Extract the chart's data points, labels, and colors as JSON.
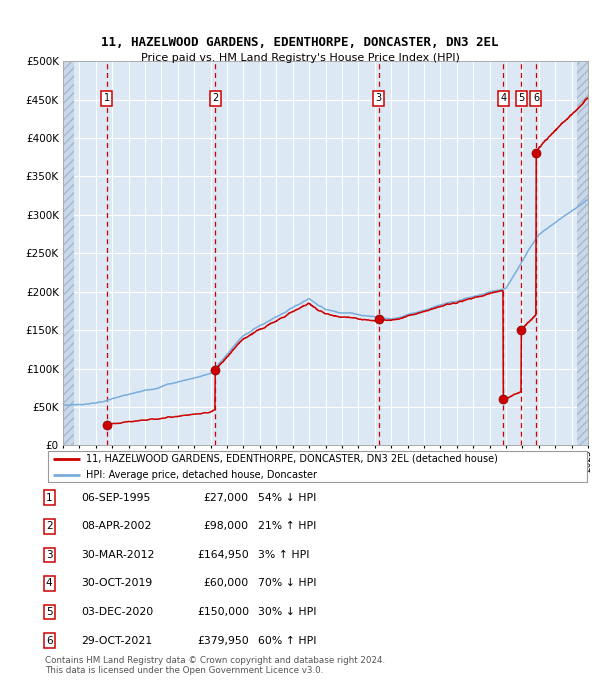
{
  "title1": "11, HAZELWOOD GARDENS, EDENTHORPE, DONCASTER, DN3 2EL",
  "title2": "Price paid vs. HM Land Registry's House Price Index (HPI)",
  "ylim": [
    0,
    500000
  ],
  "yticks": [
    0,
    50000,
    100000,
    150000,
    200000,
    250000,
    300000,
    350000,
    400000,
    450000,
    500000
  ],
  "ytick_labels": [
    "£0",
    "£50K",
    "£100K",
    "£150K",
    "£200K",
    "£250K",
    "£300K",
    "£350K",
    "£400K",
    "£450K",
    "£500K"
  ],
  "hpi_color": "#7aaddc",
  "price_color": "#cc0000",
  "background_color": "#dce9f5",
  "sale_dates_x": [
    1995.68,
    2002.27,
    2012.25,
    2019.83,
    2020.92,
    2021.83
  ],
  "sale_prices": [
    27000,
    98000,
    164950,
    60000,
    150000,
    379950
  ],
  "sale_labels": [
    "1",
    "2",
    "3",
    "4",
    "5",
    "6"
  ],
  "legend_line1": "11, HAZELWOOD GARDENS, EDENTHORPE, DONCASTER, DN3 2EL (detached house)",
  "legend_line2": "HPI: Average price, detached house, Doncaster",
  "table_rows": [
    [
      "1",
      "06-SEP-1995",
      "£27,000",
      "54% ↓ HPI"
    ],
    [
      "2",
      "08-APR-2002",
      "£98,000",
      "21% ↑ HPI"
    ],
    [
      "3",
      "30-MAR-2012",
      "£164,950",
      "3% ↑ HPI"
    ],
    [
      "4",
      "30-OCT-2019",
      "£60,000",
      "70% ↓ HPI"
    ],
    [
      "5",
      "03-DEC-2020",
      "£150,000",
      "30% ↓ HPI"
    ],
    [
      "6",
      "29-OCT-2021",
      "£379,950",
      "60% ↑ HPI"
    ]
  ],
  "footnote1": "Contains HM Land Registry data © Crown copyright and database right 2024.",
  "footnote2": "This data is licensed under the Open Government Licence v3.0.",
  "xmin": 1993,
  "xmax": 2025
}
